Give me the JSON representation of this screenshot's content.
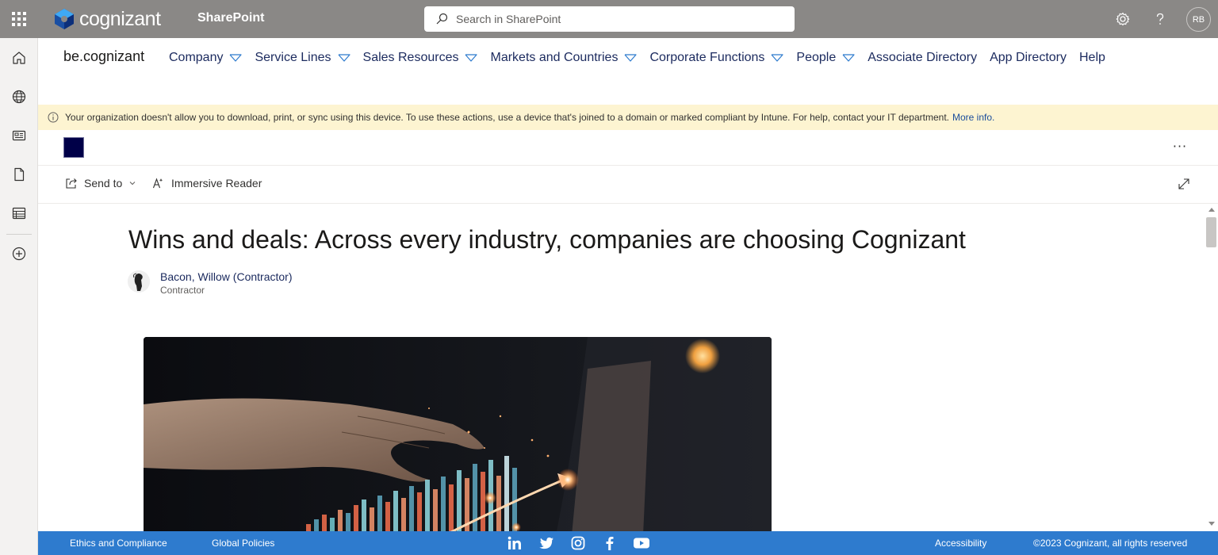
{
  "suite_bar": {
    "logo_text": "cognizant",
    "app_name": "SharePoint",
    "search_placeholder": "Search in SharePoint",
    "avatar_initials": "RB",
    "icons": [
      "waffle-icon",
      "gear-icon",
      "help-icon"
    ],
    "background": "#8a8886"
  },
  "app_bar": {
    "icons": [
      "home-icon",
      "globe-icon",
      "news-icon",
      "document-icon",
      "list-icon",
      "add-circle-icon"
    ]
  },
  "hub_nav": {
    "site_title": "be.cognizant",
    "items": [
      {
        "label": "Company",
        "has_dropdown": true
      },
      {
        "label": "Service Lines",
        "has_dropdown": true
      },
      {
        "label": "Sales Resources",
        "has_dropdown": true
      },
      {
        "label": "Markets and Countries",
        "has_dropdown": true
      },
      {
        "label": "Corporate Functions",
        "has_dropdown": true
      },
      {
        "label": "People",
        "has_dropdown": true
      },
      {
        "label": "Associate Directory",
        "has_dropdown": false
      },
      {
        "label": "App Directory",
        "has_dropdown": false
      },
      {
        "label": "Help",
        "has_dropdown": false
      }
    ]
  },
  "info_bar": {
    "message": "Your organization doesn't allow you to download, print, or sync using this device. To use these actions, use a device that's joined to a domain or marked compliant by Intune. For help, contact your IT department.",
    "link": "More info.",
    "background": "#fdf4d1"
  },
  "page_header": {
    "more_label": "···",
    "logo_color": "#000048"
  },
  "command_bar": {
    "send_to": "Send to",
    "immersive_reader": "Immersive Reader"
  },
  "article": {
    "title": "Wins and deals: Across every industry, companies are choosing Cognizant",
    "author_name": "Bacon, Willow (Contractor)",
    "author_role": "Contractor"
  },
  "footer": {
    "ethics": "Ethics and Compliance",
    "policies": "Global Policies",
    "accessibility": "Accessibility",
    "copyright": "©2023 Cognizant, all rights reserved",
    "social_icons": [
      "linkedin-icon",
      "twitter-icon",
      "instagram-icon",
      "facebook-icon",
      "youtube-icon"
    ],
    "background": "#2e7bce"
  }
}
